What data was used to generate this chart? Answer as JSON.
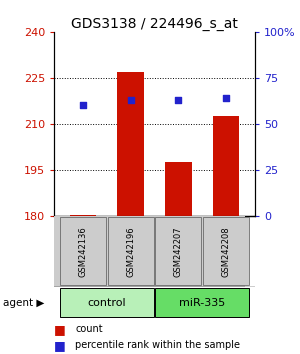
{
  "title": "GDS3138 / 224496_s_at",
  "samples": [
    "GSM242136",
    "GSM242196",
    "GSM242207",
    "GSM242208"
  ],
  "counts": [
    180.3,
    227.0,
    197.5,
    212.5
  ],
  "percentiles": [
    60,
    63,
    63,
    64
  ],
  "ylim_left": [
    180,
    240
  ],
  "ylim_right": [
    0,
    100
  ],
  "yticks_left": [
    180,
    195,
    210,
    225,
    240
  ],
  "yticks_right": [
    0,
    25,
    50,
    75,
    100
  ],
  "groups": [
    {
      "label": "control",
      "indices": [
        0,
        1
      ],
      "color": "#b8f0b8"
    },
    {
      "label": "miR-335",
      "indices": [
        2,
        3
      ],
      "color": "#66dd66"
    }
  ],
  "bar_color": "#cc1100",
  "dot_color": "#2222cc",
  "bar_width": 0.55,
  "background_color": "#ffffff",
  "label_color_left": "#cc1100",
  "label_color_right": "#2222cc",
  "title_fontsize": 10,
  "tick_fontsize": 8,
  "sample_fontsize": 6,
  "group_fontsize": 8,
  "legend_fontsize": 7
}
